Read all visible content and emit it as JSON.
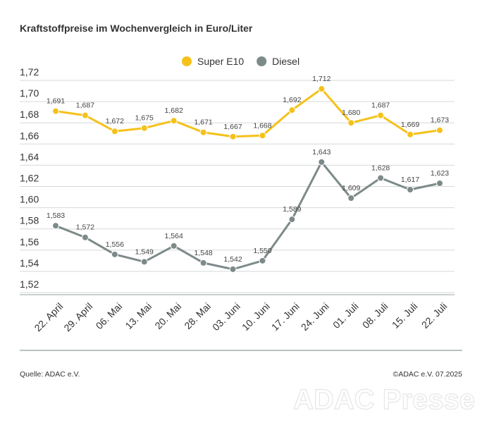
{
  "chart_data": {
    "type": "line",
    "title": "Kraftstoffpreise im Wochenvergleich in Euro/Liter",
    "categories": [
      "22. April",
      "29. April",
      "06. Mai",
      "13. Mai",
      "20. Mai",
      "28. Mai",
      "03. Juni",
      "10. Juni",
      "17. Juni",
      "24. Juni",
      "01. Juli",
      "08. Juli",
      "15. Juli",
      "22. Juli"
    ],
    "series": [
      {
        "name": "Super E10",
        "color": "#f5c11a",
        "values": [
          1.691,
          1.687,
          1.672,
          1.675,
          1.682,
          1.671,
          1.667,
          1.668,
          1.692,
          1.712,
          1.68,
          1.687,
          1.669,
          1.673
        ],
        "value_labels": [
          "1,691",
          "1,687",
          "1,672",
          "1,675",
          "1,682",
          "1,671",
          "1,667",
          "1,668",
          "1,692",
          "1,712",
          "1,680",
          "1,687",
          "1,669",
          "1,673"
        ]
      },
      {
        "name": "Diesel",
        "color": "#7d8a8a",
        "values": [
          1.583,
          1.572,
          1.556,
          1.549,
          1.564,
          1.548,
          1.542,
          1.55,
          1.589,
          1.643,
          1.609,
          1.628,
          1.617,
          1.623
        ],
        "value_labels": [
          "1,583",
          "1,572",
          "1,556",
          "1,549",
          "1,564",
          "1,548",
          "1,542",
          "1,550",
          "1,589",
          "1,643",
          "1,609",
          "1,628",
          "1,617",
          "1,623"
        ]
      }
    ],
    "ylim": [
      1.52,
      1.72
    ],
    "yticks": [
      {
        "value": 1.52,
        "label": "1,52"
      },
      {
        "value": 1.54,
        "label": "1,54"
      },
      {
        "value": 1.56,
        "label": "1,56"
      },
      {
        "value": 1.58,
        "label": "1,58"
      },
      {
        "value": 1.6,
        "label": "1,60"
      },
      {
        "value": 1.62,
        "label": "1,62"
      },
      {
        "value": 1.64,
        "label": "1,64"
      },
      {
        "value": 1.66,
        "label": "1,66"
      },
      {
        "value": 1.68,
        "label": "1,68"
      },
      {
        "value": 1.7,
        "label": "1,70"
      },
      {
        "value": 1.72,
        "label": "1,72"
      }
    ],
    "grid": true,
    "legend": "top",
    "source": "Quelle: ADAC e.V.",
    "copyright": "©ADAC e.V. 07.2025",
    "watermark": "ADAC Presse"
  }
}
